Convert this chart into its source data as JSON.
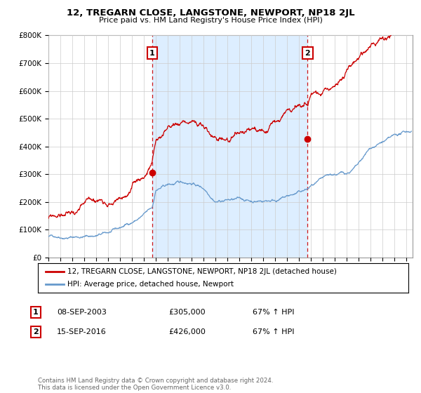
{
  "title": "12, TREGARN CLOSE, LANGSTONE, NEWPORT, NP18 2JL",
  "subtitle": "Price paid vs. HM Land Registry's House Price Index (HPI)",
  "ylabel_ticks": [
    "£0",
    "£100K",
    "£200K",
    "£300K",
    "£400K",
    "£500K",
    "£600K",
    "£700K",
    "£800K"
  ],
  "ylim": [
    0,
    800000
  ],
  "xlim_start": 1995.0,
  "xlim_end": 2025.5,
  "transaction1": {
    "date": 2003.69,
    "price": 305000,
    "label": "1",
    "date_str": "08-SEP-2003",
    "pct": "67% ↑ HPI"
  },
  "transaction2": {
    "date": 2016.71,
    "price": 426000,
    "label": "2",
    "date_str": "15-SEP-2016",
    "pct": "67% ↑ HPI"
  },
  "legend_red_label": "12, TREGARN CLOSE, LANGSTONE, NEWPORT, NP18 2JL (detached house)",
  "legend_blue_label": "HPI: Average price, detached house, Newport",
  "footnote": "Contains HM Land Registry data © Crown copyright and database right 2024.\nThis data is licensed under the Open Government Licence v3.0.",
  "red_color": "#cc0000",
  "blue_color": "#6699cc",
  "shade_color": "#ddeeff",
  "background_color": "#ffffff",
  "grid_color": "#cccccc"
}
